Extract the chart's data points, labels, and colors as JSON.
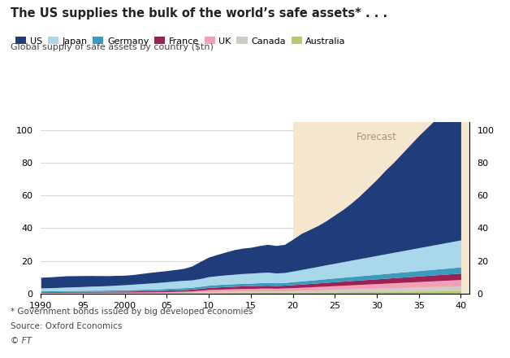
{
  "title": "The US supplies the bulk of the world’s safe assets* . . .",
  "subtitle": "Global supply of safe assets by country ($tn)",
  "footnote1": "* Government bonds issued by big developed economies",
  "footnote2": "Source: Oxford Economics",
  "footnote3": "© FT",
  "forecast_start": 2020,
  "forecast_label": "Forecast",
  "xlim": [
    1990,
    2041
  ],
  "ylim": [
    0,
    105
  ],
  "yticks": [
    0,
    20,
    40,
    60,
    80,
    100
  ],
  "xtick_labels": [
    "1990",
    "95",
    "2000",
    "05",
    "10",
    "15",
    "20",
    "25",
    "30",
    "35",
    "40"
  ],
  "xtick_values": [
    1990,
    1995,
    2000,
    2005,
    2010,
    2015,
    2020,
    2025,
    2030,
    2035,
    2040
  ],
  "countries": [
    "Australia",
    "Canada",
    "UK",
    "France",
    "Germany",
    "Japan",
    "US"
  ],
  "colors": {
    "US": "#1f3d7a",
    "Japan": "#a8d8ea",
    "Germany": "#3a9bbf",
    "France": "#9b2255",
    "UK": "#f2a0b8",
    "Canada": "#d0ccc4",
    "Australia": "#b8c96a"
  },
  "legend_order": [
    "US",
    "Japan",
    "Germany",
    "France",
    "UK",
    "Canada",
    "Australia"
  ],
  "forecast_color": "#f5e6d0",
  "background_color": "#ffffff",
  "grid_color": "#d0d0d0",
  "years": [
    1990,
    1991,
    1992,
    1993,
    1994,
    1995,
    1996,
    1997,
    1998,
    1999,
    2000,
    2001,
    2002,
    2003,
    2004,
    2005,
    2006,
    2007,
    2008,
    2009,
    2010,
    2011,
    2012,
    2013,
    2014,
    2015,
    2016,
    2017,
    2018,
    2019,
    2020,
    2021,
    2022,
    2023,
    2024,
    2025,
    2026,
    2027,
    2028,
    2029,
    2030,
    2031,
    2032,
    2033,
    2034,
    2035,
    2036,
    2037,
    2038,
    2039,
    2040
  ],
  "data": {
    "Australia": [
      0.1,
      0.1,
      0.1,
      0.1,
      0.1,
      0.1,
      0.1,
      0.1,
      0.1,
      0.1,
      0.1,
      0.1,
      0.1,
      0.1,
      0.1,
      0.15,
      0.2,
      0.2,
      0.25,
      0.3,
      0.4,
      0.45,
      0.5,
      0.55,
      0.6,
      0.6,
      0.65,
      0.65,
      0.65,
      0.7,
      0.75,
      0.8,
      0.85,
      0.9,
      0.95,
      1.0,
      1.05,
      1.1,
      1.15,
      1.2,
      1.25,
      1.3,
      1.35,
      1.4,
      1.45,
      1.5,
      1.55,
      1.6,
      1.65,
      1.7,
      1.75
    ],
    "Canada": [
      0.3,
      0.3,
      0.3,
      0.3,
      0.3,
      0.3,
      0.3,
      0.3,
      0.3,
      0.3,
      0.3,
      0.3,
      0.3,
      0.3,
      0.3,
      0.35,
      0.4,
      0.45,
      0.5,
      0.6,
      0.7,
      0.75,
      0.8,
      0.85,
      0.9,
      0.9,
      0.95,
      0.95,
      0.9,
      0.95,
      1.0,
      1.1,
      1.2,
      1.3,
      1.4,
      1.5,
      1.6,
      1.7,
      1.8,
      1.9,
      2.0,
      2.1,
      2.2,
      2.3,
      2.4,
      2.5,
      2.6,
      2.7,
      2.8,
      2.9,
      3.0
    ],
    "UK": [
      0.3,
      0.3,
      0.3,
      0.35,
      0.35,
      0.35,
      0.35,
      0.35,
      0.38,
      0.4,
      0.42,
      0.45,
      0.5,
      0.55,
      0.6,
      0.65,
      0.7,
      0.75,
      0.85,
      1.1,
      1.3,
      1.4,
      1.45,
      1.5,
      1.55,
      1.6,
      1.65,
      1.7,
      1.65,
      1.7,
      1.8,
      1.9,
      2.0,
      2.1,
      2.2,
      2.3,
      2.4,
      2.5,
      2.6,
      2.7,
      2.8,
      2.9,
      3.0,
      3.1,
      3.2,
      3.3,
      3.4,
      3.5,
      3.6,
      3.7,
      3.8
    ],
    "France": [
      0.4,
      0.42,
      0.45,
      0.5,
      0.52,
      0.55,
      0.57,
      0.58,
      0.6,
      0.62,
      0.65,
      0.7,
      0.75,
      0.8,
      0.85,
      0.9,
      0.95,
      1.0,
      1.05,
      1.2,
      1.3,
      1.4,
      1.5,
      1.55,
      1.6,
      1.65,
      1.7,
      1.75,
      1.7,
      1.75,
      1.85,
      1.95,
      2.05,
      2.15,
      2.3,
      2.4,
      2.5,
      2.6,
      2.7,
      2.8,
      2.9,
      3.0,
      3.1,
      3.2,
      3.3,
      3.4,
      3.5,
      3.6,
      3.7,
      3.8,
      3.9
    ],
    "Germany": [
      0.5,
      0.52,
      0.55,
      0.58,
      0.62,
      0.65,
      0.68,
      0.7,
      0.73,
      0.76,
      0.8,
      0.85,
      0.9,
      0.95,
      1.0,
      1.05,
      1.1,
      1.15,
      1.18,
      1.25,
      1.4,
      1.45,
      1.5,
      1.52,
      1.55,
      1.6,
      1.62,
      1.7,
      1.65,
      1.7,
      1.8,
      1.9,
      2.0,
      2.1,
      2.2,
      2.3,
      2.4,
      2.5,
      2.6,
      2.7,
      2.8,
      2.9,
      3.0,
      3.1,
      3.2,
      3.3,
      3.4,
      3.5,
      3.6,
      3.7,
      3.8
    ],
    "Japan": [
      1.8,
      1.9,
      2.0,
      2.1,
      2.2,
      2.3,
      2.5,
      2.6,
      2.7,
      2.9,
      3.1,
      3.3,
      3.5,
      3.7,
      3.9,
      4.1,
      4.3,
      4.5,
      4.5,
      4.7,
      5.2,
      5.4,
      5.6,
      5.8,
      6.0,
      6.1,
      6.2,
      6.3,
      6.0,
      6.0,
      6.5,
      7.0,
      7.5,
      8.0,
      8.5,
      9.0,
      9.5,
      10.0,
      10.5,
      11.0,
      11.5,
      12.0,
      12.5,
      13.0,
      13.5,
      14.0,
      14.5,
      15.0,
      15.5,
      16.0,
      16.5
    ],
    "US": [
      6.5,
      6.6,
      6.8,
      6.9,
      6.8,
      6.7,
      6.5,
      6.3,
      6.1,
      6.0,
      5.8,
      5.9,
      6.2,
      6.5,
      6.7,
      6.8,
      7.0,
      7.3,
      8.5,
      10.5,
      12.0,
      13.0,
      14.0,
      15.0,
      15.5,
      15.8,
      16.5,
      17.0,
      16.8,
      17.2,
      19.5,
      22.0,
      23.5,
      25.0,
      27.0,
      29.5,
      32.0,
      35.0,
      38.5,
      42.5,
      46.5,
      51.0,
      55.0,
      59.5,
      64.0,
      68.5,
      72.5,
      76.5,
      80.5,
      84.5,
      88.5
    ]
  }
}
